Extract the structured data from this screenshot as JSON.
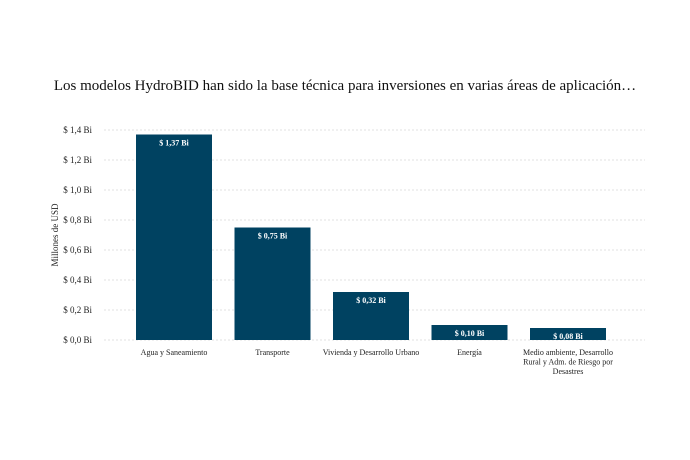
{
  "chart_data": {
    "type": "bar",
    "title": "Los modelos HydroBID han sido la base técnica para inversiones en varias áreas de aplicación…",
    "ylabel": "Millones de USD",
    "xlabel": "",
    "ylim": [
      0,
      1.4
    ],
    "yticks": [
      {
        "value": 0.0,
        "label": "$ 0,0 Bi"
      },
      {
        "value": 0.2,
        "label": "$ 0,2 Bi"
      },
      {
        "value": 0.4,
        "label": "$ 0,4 Bi"
      },
      {
        "value": 0.6,
        "label": "$ 0,6 Bi"
      },
      {
        "value": 0.8,
        "label": "$ 0,8 Bi"
      },
      {
        "value": 1.0,
        "label": "$ 1,0 Bi"
      },
      {
        "value": 1.2,
        "label": "$ 1,2 Bi"
      },
      {
        "value": 1.4,
        "label": "$ 1,4 Bi"
      }
    ],
    "categories": [
      [
        "Agua y Saneamiento"
      ],
      [
        "Transporte"
      ],
      [
        "Vivienda y Desarrollo Urbano"
      ],
      [
        "Energía"
      ],
      [
        "Medio ambiente, Desarrollo",
        "Rural y Adm. de Riesgo por",
        "Desastres"
      ]
    ],
    "values": [
      1.37,
      0.75,
      0.32,
      0.1,
      0.08
    ],
    "data_labels": [
      "$ 1,37 Bi",
      "$ 0,75 Bi",
      "$ 0,32 Bi",
      "$ 0,10 Bi",
      "$ 0,08 Bi"
    ],
    "bar_color": "#004261",
    "grid": true
  }
}
